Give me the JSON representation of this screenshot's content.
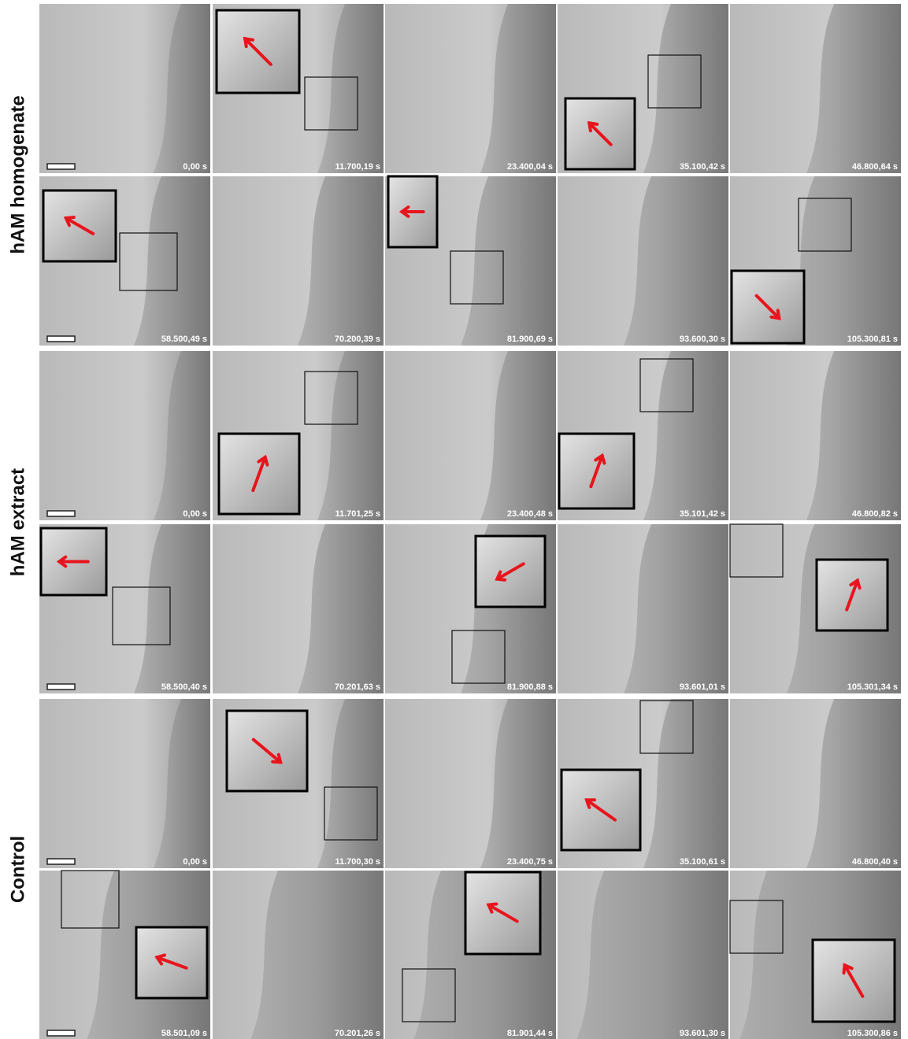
{
  "groups": [
    {
      "label": "hAM homogenate",
      "rows": [
        [
          "0,00 s",
          "11.700,19 s",
          "23.400,04 s",
          "35.100,42 s",
          "46.800,64 s"
        ],
        [
          "58.500,49 s",
          "70.200,39 s",
          "81.900,69 s",
          "93.600,30 s",
          "105.300,81 s"
        ]
      ]
    },
    {
      "label": "hAM extract",
      "rows": [
        [
          "0,00 s",
          "11.701,25 s",
          "23.400,48 s",
          "35.101,42 s",
          "46.800,82 s"
        ],
        [
          "58.500,40 s",
          "70.201,63 s",
          "81.900,88 s",
          "93.601,01 s",
          "105.301,34 s"
        ]
      ]
    },
    {
      "label": "Control",
      "rows": [
        [
          "0,00 s",
          "11.700,30 s",
          "23.400,75 s",
          "35.100,61 s",
          "46.800,40 s"
        ],
        [
          "58.501,09 s",
          "70.201,26 s",
          "81.901,44 s",
          "93.601,30 s",
          "105.300,86 s"
        ]
      ]
    }
  ]
}
